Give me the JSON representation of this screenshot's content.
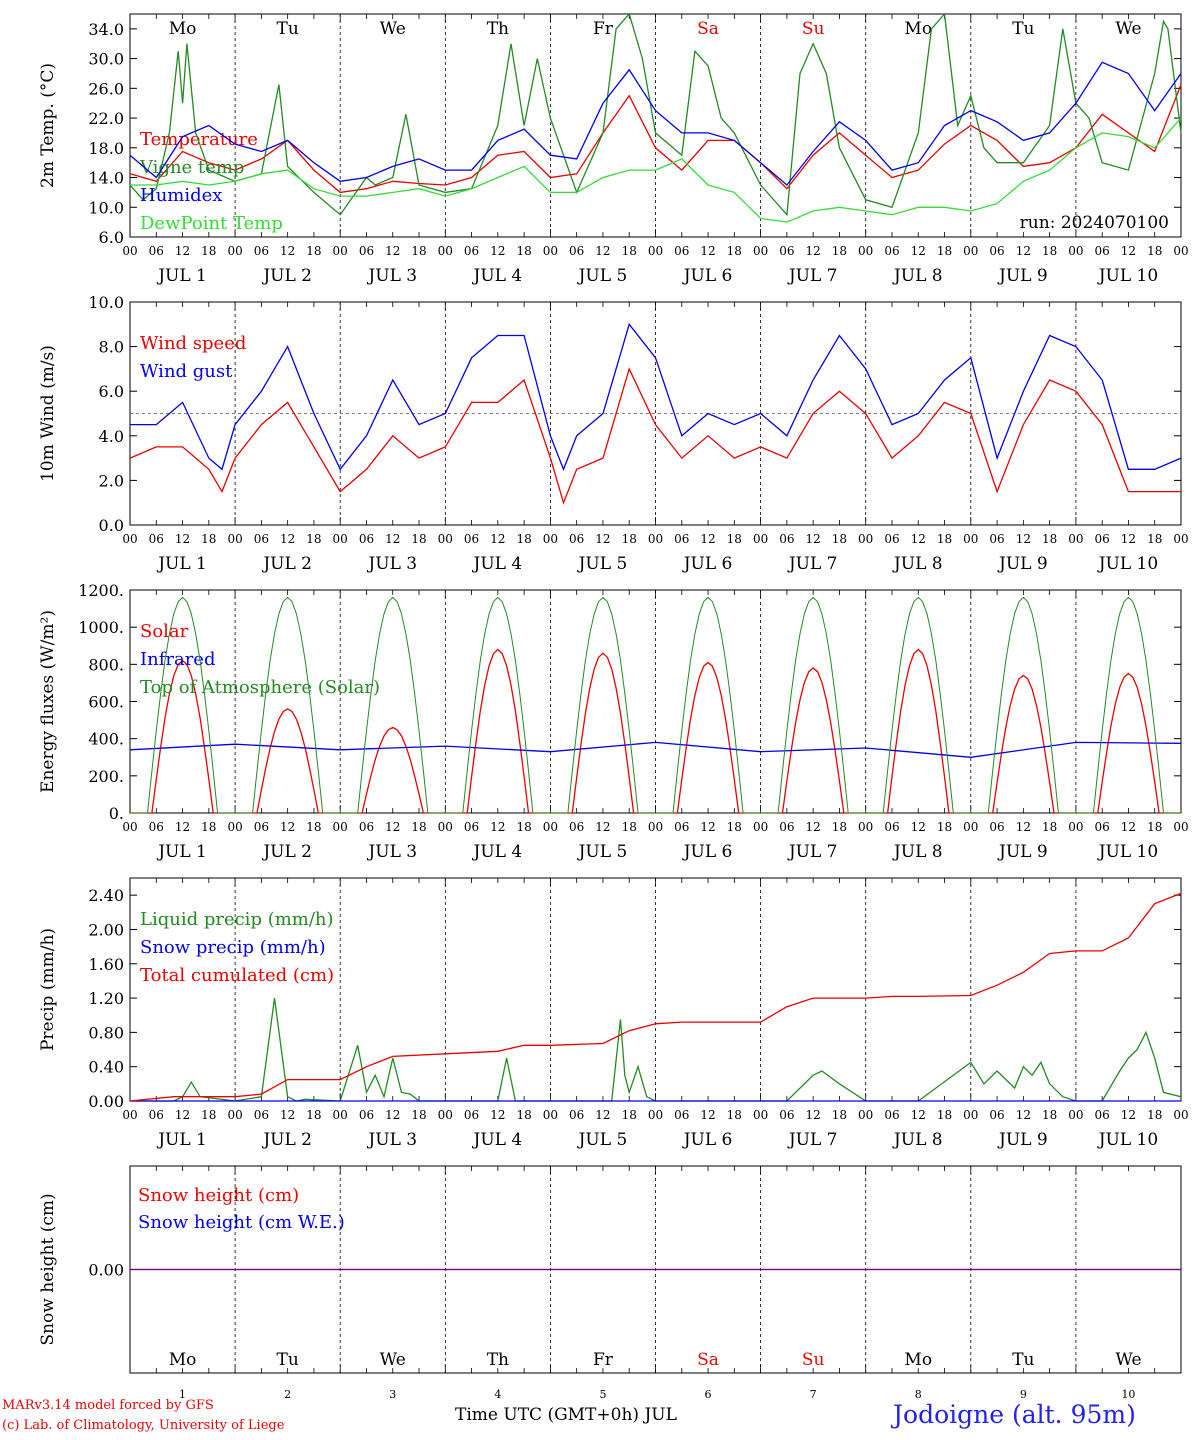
{
  "footer": {
    "model_line": "MARv3.14 model forced by GFS",
    "credit_line": "(c) Lab. of Climatology, University of Liege",
    "x_axis_title": "Time UTC (GMT+0h) JUL",
    "station": "Jodoigne (alt. 95m)"
  },
  "days": [
    "Mo",
    "Tu",
    "We",
    "Th",
    "Fr",
    "Sa",
    "Su",
    "Mo",
    "Tu",
    "We"
  ],
  "weekend_color": "#ee0000",
  "weekday_color": "#000000",
  "weekend_flags": [
    false,
    false,
    false,
    false,
    false,
    true,
    true,
    false,
    false,
    false
  ],
  "date_labels": [
    "JUL 1",
    "JUL 2",
    "JUL 3",
    "JUL 4",
    "JUL 5",
    "JUL 6",
    "JUL 7",
    "JUL 8",
    "JUL 9",
    "JUL 10"
  ],
  "day_numbers": [
    "1",
    "2",
    "3",
    "4",
    "5",
    "6",
    "7",
    "8",
    "9",
    "10"
  ],
  "hour_ticks": [
    "00",
    "06",
    "12",
    "18"
  ],
  "end_tick": "00",
  "colors": {
    "red": "#ee0000",
    "green": "#228b22",
    "blue": "#0000ee",
    "lightgreen": "#33dd33",
    "purple": "#7f007f"
  },
  "chart_data": [
    {
      "id": "temp",
      "type": "line",
      "ylabel": "2m Temp. (°C)",
      "ylim": [
        6,
        36
      ],
      "yticks": [
        "6.0",
        "10.0",
        "14.0",
        "18.0",
        "22.0",
        "26.0",
        "30.0",
        "34.0"
      ],
      "annotation": "run: 2024070100",
      "series": [
        {
          "name": "Temperature",
          "color": "#ee0000",
          "x": [
            0,
            6,
            12,
            18,
            24,
            30,
            36,
            42,
            48,
            54,
            60,
            66,
            72,
            78,
            84,
            90,
            96,
            102,
            108,
            114,
            120,
            126,
            132,
            138,
            144,
            150,
            156,
            162,
            168,
            174,
            180,
            186,
            192,
            198,
            204,
            210,
            216,
            222,
            228,
            234,
            240
          ],
          "y": [
            14.5,
            13.5,
            17.5,
            16,
            15,
            16.5,
            19,
            15,
            12,
            12.5,
            13.5,
            13.2,
            13,
            14,
            17,
            17.5,
            14,
            14.5,
            20,
            25,
            18,
            15,
            19,
            19,
            16,
            12.5,
            17,
            20,
            17,
            14,
            15,
            18.5,
            21,
            19,
            15.5,
            16,
            18,
            22.5,
            20,
            17.5,
            26.5
          ]
        },
        {
          "name": "Vigne temp",
          "color": "#228b22",
          "x": [
            0,
            3,
            6,
            9,
            11,
            12,
            13,
            15,
            18,
            24,
            30,
            34,
            36,
            42,
            48,
            54,
            56,
            60,
            63,
            66,
            72,
            78,
            84,
            87,
            90,
            93,
            96,
            102,
            108,
            111,
            114,
            117,
            120,
            126,
            129,
            132,
            135,
            138,
            144,
            150,
            153,
            156,
            159,
            162,
            168,
            174,
            180,
            183,
            186,
            189,
            192,
            195,
            198,
            204,
            210,
            213,
            216,
            219,
            222,
            228,
            234,
            236,
            237,
            240
          ],
          "y": [
            13,
            11,
            12.5,
            20,
            31,
            24,
            32,
            20,
            15,
            13.5,
            14.5,
            26.5,
            15.5,
            12,
            9,
            14,
            13,
            14,
            22.5,
            13,
            12,
            12.5,
            21,
            32,
            21,
            30,
            22,
            12,
            20,
            34,
            38,
            30,
            20,
            17,
            31,
            29,
            22,
            20,
            13,
            9,
            28,
            32,
            28,
            18,
            11,
            10,
            20,
            34,
            36,
            21,
            25,
            18,
            16,
            16,
            21,
            34,
            24,
            22,
            16,
            15,
            28,
            35,
            34,
            20
          ]
        },
        {
          "name": "Humidex",
          "color": "#0000ee",
          "x": [
            0,
            6,
            12,
            18,
            24,
            30,
            36,
            42,
            48,
            54,
            60,
            66,
            72,
            78,
            84,
            90,
            96,
            102,
            108,
            114,
            120,
            126,
            132,
            138,
            144,
            150,
            156,
            162,
            168,
            174,
            180,
            186,
            192,
            198,
            204,
            210,
            216,
            222,
            228,
            234,
            240
          ],
          "y": [
            17,
            14,
            19.5,
            21,
            18.5,
            17.5,
            19,
            16,
            13.5,
            14,
            15.5,
            16.5,
            15,
            15,
            19,
            20.5,
            17,
            16.5,
            24,
            28.5,
            23,
            20,
            20,
            19,
            16,
            13,
            17.5,
            21.5,
            19,
            15,
            16,
            21,
            23,
            21.5,
            19,
            20,
            24,
            29.5,
            28,
            23,
            28
          ]
        },
        {
          "name": "DewPoint Temp",
          "color": "#33dd33",
          "x": [
            0,
            6,
            12,
            18,
            24,
            30,
            36,
            42,
            48,
            54,
            60,
            66,
            72,
            78,
            84,
            90,
            96,
            102,
            108,
            114,
            120,
            126,
            132,
            138,
            144,
            150,
            156,
            162,
            168,
            174,
            180,
            186,
            192,
            198,
            204,
            210,
            216,
            222,
            228,
            234,
            240
          ],
          "y": [
            13,
            13,
            13.5,
            13,
            13.5,
            14.5,
            15,
            12.5,
            11.5,
            11.5,
            12,
            12.5,
            11.5,
            12.5,
            14,
            15.5,
            12,
            12,
            14,
            15,
            15,
            16.5,
            13,
            12,
            8.5,
            8,
            9.5,
            10,
            9.5,
            9,
            10,
            10,
            9.5,
            10.5,
            13.5,
            15,
            18,
            20,
            19.5,
            18,
            22
          ]
        }
      ]
    },
    {
      "id": "wind",
      "type": "line",
      "ylabel": "10m Wind (m/s)",
      "ylim": [
        0,
        10
      ],
      "yticks": [
        "0.0",
        "2.0",
        "4.0",
        "6.0",
        "8.0",
        "10.0"
      ],
      "reference_line": 5,
      "series": [
        {
          "name": "Wind speed",
          "color": "#ee0000",
          "x": [
            0,
            6,
            12,
            18,
            21,
            24,
            30,
            36,
            42,
            48,
            54,
            60,
            66,
            72,
            78,
            84,
            90,
            96,
            99,
            102,
            108,
            114,
            120,
            126,
            132,
            138,
            144,
            150,
            156,
            162,
            168,
            174,
            180,
            186,
            192,
            198,
            204,
            210,
            216,
            222,
            228,
            234,
            240
          ],
          "y": [
            3,
            3.5,
            3.5,
            2.5,
            1.5,
            3,
            4.5,
            5.5,
            3.5,
            1.5,
            2.5,
            4,
            3,
            3.5,
            5.5,
            5.5,
            6.5,
            3,
            1,
            2.5,
            3,
            7,
            4.5,
            3,
            4,
            3,
            3.5,
            3,
            5,
            6,
            5,
            3,
            4,
            5.5,
            5,
            1.5,
            4.5,
            6.5,
            6,
            4.5,
            1.5,
            1.5,
            1.5
          ]
        },
        {
          "name": "Wind gust",
          "color": "#0000ee",
          "x": [
            0,
            6,
            12,
            18,
            21,
            24,
            30,
            36,
            42,
            48,
            54,
            60,
            66,
            72,
            78,
            84,
            90,
            96,
            99,
            102,
            108,
            114,
            120,
            126,
            132,
            138,
            144,
            150,
            156,
            162,
            168,
            174,
            180,
            186,
            192,
            198,
            204,
            210,
            216,
            222,
            228,
            234,
            240
          ],
          "y": [
            4.5,
            4.5,
            5.5,
            3,
            2.5,
            4.5,
            6,
            8,
            5,
            2.5,
            4,
            6.5,
            4.5,
            5,
            7.5,
            8.5,
            8.5,
            4,
            2.5,
            4,
            5,
            9,
            7.5,
            4,
            5,
            4.5,
            5,
            4,
            6.5,
            8.5,
            7,
            4.5,
            5,
            6.5,
            7.5,
            3,
            6,
            8.5,
            8,
            6.5,
            2.5,
            2.5,
            3
          ]
        }
      ]
    },
    {
      "id": "energy",
      "type": "line",
      "ylabel": "Energy fluxes (W/m²)",
      "ylim": [
        0,
        1200
      ],
      "yticks": [
        "0.",
        "200.",
        "400.",
        "600.",
        "800.",
        "1000.",
        "1200."
      ],
      "series": [
        {
          "name": "Solar",
          "color": "#ee0000",
          "daily_peak": [
            820,
            560,
            460,
            880,
            860,
            810,
            780,
            880,
            740,
            750
          ]
        },
        {
          "name": "Infrared",
          "color": "#0000ee",
          "x": [
            0,
            24,
            48,
            72,
            96,
            120,
            144,
            168,
            192,
            216,
            240
          ],
          "y": [
            340,
            370,
            340,
            360,
            330,
            380,
            330,
            350,
            300,
            380,
            375
          ]
        },
        {
          "name": "Top of Atmosphere (Solar)",
          "color": "#228b22",
          "daily_peak": [
            1160,
            1160,
            1160,
            1160,
            1160,
            1160,
            1160,
            1160,
            1160,
            1160
          ]
        }
      ]
    },
    {
      "id": "precip",
      "type": "line",
      "ylabel": "Precip (mm/h)",
      "ylim": [
        0,
        2.6
      ],
      "yticks": [
        "0.00",
        "0.40",
        "0.80",
        "1.20",
        "1.60",
        "2.00",
        "2.40"
      ],
      "series": [
        {
          "name": "Liquid precip (mm/h)",
          "color": "#228b22",
          "x": [
            0,
            10,
            12,
            14,
            16,
            24,
            30,
            33,
            36,
            38,
            40,
            48,
            52,
            54,
            56,
            58,
            60,
            62,
            64,
            66,
            84,
            86,
            88,
            96,
            110,
            112,
            113,
            114,
            116,
            118,
            120,
            126,
            132,
            150,
            156,
            158,
            162,
            168,
            180,
            192,
            195,
            198,
            202,
            204,
            206,
            208,
            210,
            213,
            216,
            222,
            226,
            228,
            230,
            232,
            234,
            236,
            240
          ],
          "y": [
            0,
            0,
            0.05,
            0.22,
            0.05,
            0,
            0.05,
            1.2,
            0.05,
            0,
            0.02,
            0,
            0.65,
            0.1,
            0.3,
            0.05,
            0.5,
            0.1,
            0.08,
            0,
            0,
            0.5,
            0,
            0,
            0,
            0.95,
            0.3,
            0.1,
            0.4,
            0.05,
            0,
            0,
            0,
            0,
            0.3,
            0.35,
            0.2,
            0,
            0,
            0.45,
            0.2,
            0.35,
            0.15,
            0.4,
            0.3,
            0.45,
            0.2,
            0.05,
            0,
            0,
            0.35,
            0.5,
            0.6,
            0.8,
            0.5,
            0.1,
            0.05
          ]
        },
        {
          "name": "Snow precip (mm/h)",
          "color": "#0000ee",
          "x": [
            0,
            240
          ],
          "y": [
            0,
            0
          ]
        },
        {
          "name": "Total cumulated (cm)",
          "color": "#ee0000",
          "x": [
            0,
            10,
            24,
            30,
            36,
            48,
            54,
            60,
            72,
            84,
            90,
            96,
            108,
            114,
            120,
            126,
            132,
            144,
            150,
            156,
            168,
            174,
            180,
            192,
            198,
            204,
            210,
            216,
            222,
            228,
            234,
            240
          ],
          "y": [
            0,
            0.05,
            0.05,
            0.08,
            0.25,
            0.25,
            0.4,
            0.52,
            0.55,
            0.58,
            0.65,
            0.65,
            0.67,
            0.82,
            0.9,
            0.92,
            0.92,
            0.92,
            1.1,
            1.2,
            1.2,
            1.22,
            1.22,
            1.23,
            1.35,
            1.5,
            1.72,
            1.75,
            1.75,
            1.9,
            2.3,
            2.42
          ]
        }
      ]
    },
    {
      "id": "snow",
      "type": "line",
      "ylabel": "Snow height (cm)",
      "ylim": [
        -1,
        1
      ],
      "yticks": [
        "0.00"
      ],
      "series": [
        {
          "name": "Snow height (cm)",
          "color": "#ee0000",
          "x": [
            0,
            240
          ],
          "y": [
            0,
            0
          ]
        },
        {
          "name": "Snow height (cm W.E.)",
          "color": "#0000ee",
          "x": [
            0,
            240
          ],
          "y": [
            0,
            0
          ]
        }
      ]
    }
  ]
}
